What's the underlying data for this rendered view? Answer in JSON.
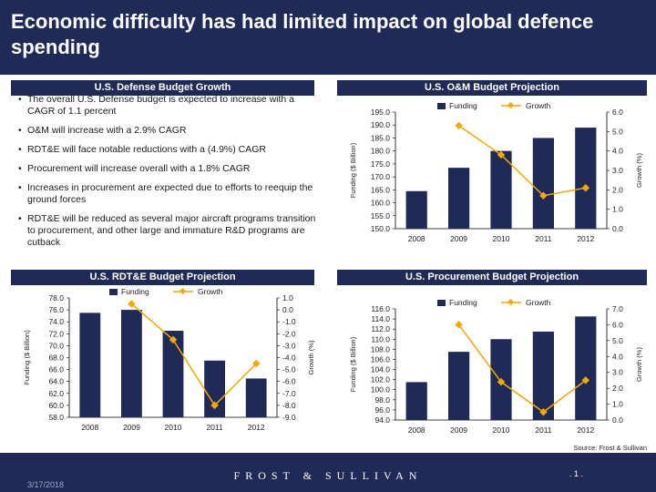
{
  "slide": {
    "title": "Economic difficulty has had limited impact on global defence spending",
    "source": "Source: Frost & Sullivan",
    "date": "3/17/2018",
    "brand": "FROST & SULLIVAN",
    "page": ". 1 ."
  },
  "colors": {
    "navy": "#1f2a56",
    "bar": "#1f2a56",
    "line": "#f2a900"
  },
  "headers": {
    "budget_growth": "U.S. Defense Budget Growth",
    "om": "U.S. O&M Budget Projection",
    "rdte": "U.S. RDT&E Budget Projection",
    "procurement": "U.S. Procurement Budget Projection"
  },
  "bullets": [
    "The overall U.S. Defense budget is expected to increase with a CAGR of 1.1 percent",
    "O&M will increase with a 2.9% CAGR",
    "RDT&E will face notable reductions with a (4.9%) CAGR",
    "Procurement will increase overall with a 1.8% CAGR",
    "Increases in procurement are expected due to efforts to reequip the ground forces",
    "RDT&E will be reduced as several major aircraft programs transition to procurement, and other large and immature R&D programs are cutback"
  ],
  "chart_data": [
    {
      "id": "om",
      "type": "bar",
      "title": "U.S. O&M Budget Projection",
      "categories": [
        "2008",
        "2009",
        "2010",
        "2011",
        "2012"
      ],
      "series": [
        {
          "name": "Funding",
          "kind": "bar",
          "axis": "left",
          "values": [
            164.5,
            173.5,
            180.0,
            185.0,
            189.0
          ]
        },
        {
          "name": "Growth",
          "kind": "line",
          "axis": "right",
          "values": [
            null,
            5.3,
            3.8,
            1.7,
            2.1
          ]
        }
      ],
      "ylabel": "Funding ($ Billion)",
      "ylabel_right": "Growth (%)",
      "ylim": [
        150,
        195
      ],
      "yticks": [
        "150.0",
        "155.0",
        "160.0",
        "165.0",
        "170.0",
        "175.0",
        "180.0",
        "185.0",
        "190.0",
        "195.0"
      ],
      "ylim_right": [
        0,
        6
      ],
      "yticks_right": [
        "0.0",
        "1.0",
        "2.0",
        "3.0",
        "4.0",
        "5.0",
        "6.0"
      ],
      "legend": "top-center"
    },
    {
      "id": "rdte",
      "type": "bar",
      "title": "U.S. RDT&E Budget Projection",
      "categories": [
        "2008",
        "2009",
        "2010",
        "2011",
        "2012"
      ],
      "series": [
        {
          "name": "Funding",
          "kind": "bar",
          "axis": "left",
          "values": [
            75.5,
            76.0,
            72.5,
            67.5,
            64.5
          ]
        },
        {
          "name": "Growth",
          "kind": "line",
          "axis": "right",
          "values": [
            null,
            0.5,
            -2.5,
            -8.0,
            -4.5
          ]
        }
      ],
      "ylabel": "Funding ($ Billion)",
      "ylabel_right": "Growth (%)",
      "ylim": [
        58,
        78
      ],
      "yticks": [
        "58.0",
        "60.0",
        "62.0",
        "64.0",
        "66.0",
        "68.0",
        "70.0",
        "72.0",
        "74.0",
        "76.0",
        "78.0"
      ],
      "ylim_right": [
        -9,
        1
      ],
      "yticks_right": [
        "-9.0",
        "-8.0",
        "-7.0",
        "-6.0",
        "-5.0",
        "-4.0",
        "-3.0",
        "-2.0",
        "-1.0",
        "0.0",
        "1.0"
      ],
      "legend": "top-center"
    },
    {
      "id": "procurement",
      "type": "bar",
      "title": "U.S. Procurement Budget Projection",
      "categories": [
        "2008",
        "2009",
        "2010",
        "2011",
        "2012"
      ],
      "series": [
        {
          "name": "Funding",
          "kind": "bar",
          "axis": "left",
          "values": [
            101.5,
            107.5,
            110.0,
            111.5,
            114.5
          ]
        },
        {
          "name": "Growth",
          "kind": "line",
          "axis": "right",
          "values": [
            null,
            6.0,
            2.4,
            0.5,
            2.5
          ]
        }
      ],
      "ylabel": "Funding ($ Billion)",
      "ylabel_right": "Growth (%)",
      "ylim": [
        94,
        116
      ],
      "yticks": [
        "94.0",
        "96.0",
        "98.0",
        "100.0",
        "102.0",
        "104.0",
        "106.0",
        "108.0",
        "110.0",
        "112.0",
        "114.0",
        "116.0"
      ],
      "ylim_right": [
        0,
        7
      ],
      "yticks_right": [
        "0.0",
        "1.0",
        "2.0",
        "3.0",
        "4.0",
        "5.0",
        "6.0",
        "7.0"
      ],
      "legend": "top-center"
    }
  ]
}
